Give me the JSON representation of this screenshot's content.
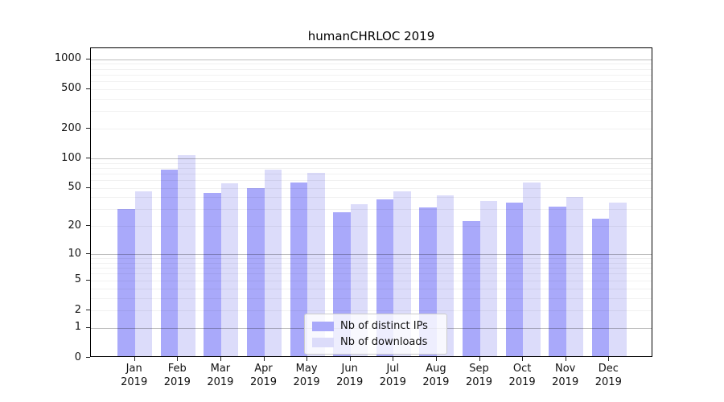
{
  "chart_data": {
    "type": "bar",
    "title": "humanCHRLOC 2019",
    "year": "2019",
    "categories": [
      "Jan",
      "Feb",
      "Mar",
      "Apr",
      "May",
      "Jun",
      "Jul",
      "Aug",
      "Sep",
      "Oct",
      "Nov",
      "Dec"
    ],
    "series": [
      {
        "name": "Nb of distinct IPs",
        "color": "#a9a9fa",
        "values": [
          29,
          74,
          43,
          48,
          55,
          27,
          37,
          30,
          22,
          34,
          31,
          23
        ]
      },
      {
        "name": "Nb of downloads",
        "color": "#dcdcfa",
        "values": [
          44,
          104,
          54,
          74,
          69,
          33,
          44,
          40,
          35,
          55,
          39,
          34
        ]
      }
    ],
    "yticks": [
      {
        "label": "0",
        "value": 0
      },
      {
        "label": "1",
        "value": 1
      },
      {
        "label": "2",
        "value": 2
      },
      {
        "label": "5",
        "value": 5
      },
      {
        "label": "10",
        "value": 10
      },
      {
        "label": "20",
        "value": 20
      },
      {
        "label": "50",
        "value": 50
      },
      {
        "label": "100",
        "value": 100
      },
      {
        "label": "200",
        "value": 200
      },
      {
        "label": "500",
        "value": 500
      },
      {
        "label": "1000",
        "value": 1000
      }
    ],
    "major_grid_values": [
      1,
      10,
      100,
      1000
    ],
    "scale": "log10(1+v)",
    "ylim": [
      0,
      1290
    ],
    "grid": true,
    "legend_position": "lower center"
  }
}
